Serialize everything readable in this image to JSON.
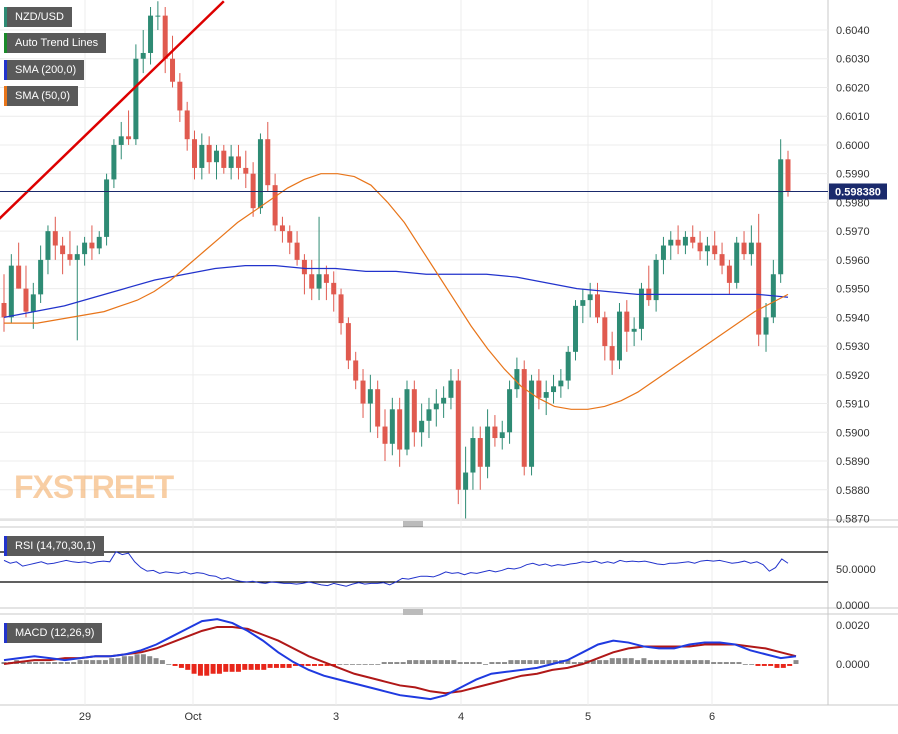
{
  "chart_data": {
    "type": "candlestick",
    "title": "NZD/USD",
    "colors": {
      "up": "#2e8b74",
      "down": "#e05a4f",
      "sma200": "#2233cc",
      "sma50": "#e8751a",
      "trend": "#dd0000",
      "rsi": "#2233cc",
      "macd": "#1f3ae0",
      "signal": "#b01818",
      "hist_pos": "#8a8a8a",
      "hist_neg": "#e8261a",
      "price_line": "#1a2a6c"
    },
    "price_axis": {
      "min": 0.587,
      "max": 0.604,
      "step": 0.001,
      "ticks": [
        "0.6040",
        "0.6030",
        "0.6020",
        "0.6010",
        "0.6000",
        "0.5990",
        "0.5980",
        "0.5970",
        "0.5960",
        "0.5950",
        "0.5940",
        "0.5930",
        "0.5920",
        "0.5910",
        "0.5900",
        "0.5890",
        "0.5880",
        "0.5870"
      ]
    },
    "last_price": "0.598380",
    "last_price_value": 0.59838,
    "x_axis_labels": [
      "29",
      "Oct",
      "3",
      "4",
      "5",
      "6"
    ],
    "legend": [
      "NZD/USD",
      "Auto Trend Lines",
      "SMA (200,0)",
      "SMA (50,0)"
    ],
    "candles": [
      [
        0.5945,
        0.5955,
        0.5935,
        0.594
      ],
      [
        0.594,
        0.5962,
        0.5938,
        0.5958
      ],
      [
        0.5958,
        0.5966,
        0.595,
        0.595
      ],
      [
        0.595,
        0.5958,
        0.594,
        0.5942
      ],
      [
        0.5942,
        0.5952,
        0.5936,
        0.5948
      ],
      [
        0.5948,
        0.5965,
        0.5945,
        0.596
      ],
      [
        0.596,
        0.5972,
        0.5955,
        0.597
      ],
      [
        0.597,
        0.5975,
        0.596,
        0.5965
      ],
      [
        0.5965,
        0.5968,
        0.5955,
        0.5962
      ],
      [
        0.5962,
        0.597,
        0.5958,
        0.596
      ],
      [
        0.596,
        0.5965,
        0.5932,
        0.5962
      ],
      [
        0.5962,
        0.5968,
        0.5958,
        0.5966
      ],
      [
        0.5966,
        0.5972,
        0.596,
        0.5964
      ],
      [
        0.5964,
        0.597,
        0.5962,
        0.5968
      ],
      [
        0.5968,
        0.599,
        0.5965,
        0.5988
      ],
      [
        0.5988,
        0.6002,
        0.5985,
        0.6
      ],
      [
        0.6,
        0.6008,
        0.5995,
        0.6003
      ],
      [
        0.6003,
        0.6012,
        0.6,
        0.6002
      ],
      [
        0.6002,
        0.6035,
        0.6,
        0.603
      ],
      [
        0.603,
        0.604,
        0.6025,
        0.6032
      ],
      [
        0.6032,
        0.6048,
        0.6028,
        0.6045
      ],
      [
        0.6045,
        0.605,
        0.604,
        0.6045
      ],
      [
        0.6045,
        0.6048,
        0.6025,
        0.603
      ],
      [
        0.603,
        0.6038,
        0.602,
        0.6022
      ],
      [
        0.6022,
        0.6025,
        0.6008,
        0.6012
      ],
      [
        0.6012,
        0.6015,
        0.5998,
        0.6002
      ],
      [
        0.6002,
        0.6005,
        0.5988,
        0.5992
      ],
      [
        0.5992,
        0.6004,
        0.5988,
        0.6
      ],
      [
        0.6,
        0.6003,
        0.599,
        0.5994
      ],
      [
        0.5994,
        0.6,
        0.5988,
        0.5998
      ],
      [
        0.5998,
        0.6,
        0.599,
        0.5992
      ],
      [
        0.5992,
        0.6,
        0.5988,
        0.5996
      ],
      [
        0.5996,
        0.6,
        0.5988,
        0.5992
      ],
      [
        0.5992,
        0.5998,
        0.5985,
        0.599
      ],
      [
        0.599,
        0.5994,
        0.5975,
        0.5978
      ],
      [
        0.5978,
        0.6004,
        0.5976,
        0.6002
      ],
      [
        0.6002,
        0.6008,
        0.5984,
        0.5986
      ],
      [
        0.5986,
        0.599,
        0.597,
        0.5972
      ],
      [
        0.5972,
        0.5975,
        0.5966,
        0.597
      ],
      [
        0.597,
        0.5972,
        0.5962,
        0.5966
      ],
      [
        0.5966,
        0.597,
        0.5958,
        0.596
      ],
      [
        0.596,
        0.5962,
        0.5948,
        0.5955
      ],
      [
        0.5955,
        0.596,
        0.5946,
        0.595
      ],
      [
        0.595,
        0.5975,
        0.5946,
        0.5955
      ],
      [
        0.5955,
        0.5958,
        0.5946,
        0.5952
      ],
      [
        0.5952,
        0.5956,
        0.5942,
        0.5948
      ],
      [
        0.5948,
        0.595,
        0.5934,
        0.5938
      ],
      [
        0.5938,
        0.594,
        0.5922,
        0.5925
      ],
      [
        0.5925,
        0.5928,
        0.5915,
        0.5918
      ],
      [
        0.5918,
        0.5922,
        0.5905,
        0.591
      ],
      [
        0.591,
        0.592,
        0.59,
        0.5915
      ],
      [
        0.5915,
        0.5918,
        0.5898,
        0.5902
      ],
      [
        0.5902,
        0.5908,
        0.589,
        0.5896
      ],
      [
        0.5896,
        0.5912,
        0.5892,
        0.5908
      ],
      [
        0.5908,
        0.5912,
        0.5888,
        0.5894
      ],
      [
        0.5894,
        0.5918,
        0.5892,
        0.5915
      ],
      [
        0.5915,
        0.5918,
        0.5895,
        0.59
      ],
      [
        0.59,
        0.591,
        0.5895,
        0.5904
      ],
      [
        0.5904,
        0.5912,
        0.5898,
        0.5908
      ],
      [
        0.5908,
        0.5915,
        0.5902,
        0.591
      ],
      [
        0.591,
        0.5916,
        0.5905,
        0.5912
      ],
      [
        0.5912,
        0.5922,
        0.5908,
        0.5918
      ],
      [
        0.5918,
        0.5922,
        0.5875,
        0.588
      ],
      [
        0.588,
        0.5895,
        0.587,
        0.5886
      ],
      [
        0.5886,
        0.5902,
        0.588,
        0.5898
      ],
      [
        0.5898,
        0.5902,
        0.588,
        0.5888
      ],
      [
        0.5888,
        0.5908,
        0.5884,
        0.5902
      ],
      [
        0.5902,
        0.5906,
        0.5895,
        0.5898
      ],
      [
        0.5898,
        0.5904,
        0.5894,
        0.59
      ],
      [
        0.59,
        0.5918,
        0.5896,
        0.5915
      ],
      [
        0.5915,
        0.5926,
        0.5912,
        0.5922
      ],
      [
        0.5922,
        0.5925,
        0.5885,
        0.5888
      ],
      [
        0.5888,
        0.592,
        0.5885,
        0.5918
      ],
      [
        0.5918,
        0.5922,
        0.5908,
        0.5912
      ],
      [
        0.5912,
        0.5918,
        0.5906,
        0.5914
      ],
      [
        0.5914,
        0.592,
        0.591,
        0.5916
      ],
      [
        0.5916,
        0.5922,
        0.5912,
        0.5918
      ],
      [
        0.5918,
        0.593,
        0.5915,
        0.5928
      ],
      [
        0.5928,
        0.5946,
        0.5925,
        0.5944
      ],
      [
        0.5944,
        0.595,
        0.5938,
        0.5946
      ],
      [
        0.5946,
        0.5952,
        0.594,
        0.5948
      ],
      [
        0.5948,
        0.5952,
        0.5938,
        0.594
      ],
      [
        0.594,
        0.5942,
        0.5925,
        0.593
      ],
      [
        0.593,
        0.5935,
        0.592,
        0.5925
      ],
      [
        0.5925,
        0.5945,
        0.5922,
        0.5942
      ],
      [
        0.5942,
        0.5946,
        0.5928,
        0.5935
      ],
      [
        0.5935,
        0.594,
        0.593,
        0.5936
      ],
      [
        0.5936,
        0.5952,
        0.5932,
        0.595
      ],
      [
        0.595,
        0.5958,
        0.5944,
        0.5946
      ],
      [
        0.5946,
        0.5962,
        0.5942,
        0.596
      ],
      [
        0.596,
        0.5968,
        0.5955,
        0.5965
      ],
      [
        0.5965,
        0.597,
        0.596,
        0.5967
      ],
      [
        0.5967,
        0.5972,
        0.5962,
        0.5965
      ],
      [
        0.5965,
        0.597,
        0.5962,
        0.5968
      ],
      [
        0.5968,
        0.5972,
        0.5964,
        0.5966
      ],
      [
        0.5966,
        0.597,
        0.596,
        0.5963
      ],
      [
        0.5963,
        0.5968,
        0.5958,
        0.5965
      ],
      [
        0.5965,
        0.597,
        0.596,
        0.5962
      ],
      [
        0.5962,
        0.5966,
        0.5955,
        0.5958
      ],
      [
        0.5958,
        0.596,
        0.5948,
        0.5952
      ],
      [
        0.5952,
        0.5968,
        0.595,
        0.5966
      ],
      [
        0.5966,
        0.597,
        0.596,
        0.5962
      ],
      [
        0.5962,
        0.5972,
        0.5958,
        0.5966
      ],
      [
        0.5966,
        0.5976,
        0.593,
        0.5934
      ],
      [
        0.5934,
        0.5945,
        0.5928,
        0.594
      ],
      [
        0.594,
        0.596,
        0.5938,
        0.5955
      ],
      [
        0.5955,
        0.6002,
        0.5952,
        0.5995
      ],
      [
        0.5995,
        0.5998,
        0.5982,
        0.5984
      ]
    ],
    "sma50": [
      0.5938,
      0.5938,
      0.5938,
      0.5939,
      0.594,
      0.5941,
      0.5942,
      0.5944,
      0.5946,
      0.5949,
      0.5953,
      0.5958,
      0.5963,
      0.5968,
      0.5973,
      0.5977,
      0.5981,
      0.5985,
      0.5988,
      0.599,
      0.599,
      0.5989,
      0.5986,
      0.598,
      0.5973,
      0.5964,
      0.5955,
      0.5946,
      0.5937,
      0.5929,
      0.5922,
      0.5916,
      0.5912,
      0.5909,
      0.5908,
      0.5908,
      0.5909,
      0.5911,
      0.5914,
      0.5918,
      0.5922,
      0.5926,
      0.593,
      0.5934,
      0.5938,
      0.5942,
      0.5945,
      0.5948
    ],
    "sma200": [
      0.594,
      0.5942,
      0.5944,
      0.5947,
      0.595,
      0.5953,
      0.5955,
      0.5957,
      0.5958,
      0.5958,
      0.5957,
      0.5957,
      0.5956,
      0.5956,
      0.5955,
      0.5955,
      0.5955,
      0.5954,
      0.5952,
      0.595,
      0.5949,
      0.5948,
      0.5948,
      0.5948,
      0.5948,
      0.5948,
      0.5947
    ],
    "trend_line": [
      [
        -4,
        0.5966
      ],
      [
        30,
        0.605
      ]
    ],
    "rsi": {
      "label": "RSI (14,70,30,1)",
      "levels": [
        70,
        30
      ],
      "ticks": [
        "50.0000",
        "0.0000"
      ],
      "values": [
        62,
        58,
        60,
        54,
        56,
        58,
        60,
        57,
        58,
        60,
        62,
        60,
        59,
        60,
        58,
        60,
        61,
        60,
        74,
        70,
        72,
        60,
        52,
        47,
        48,
        44,
        46,
        45,
        44,
        46,
        43,
        45,
        44,
        41,
        40,
        36,
        38,
        35,
        33,
        32,
        33,
        31,
        30,
        32,
        31,
        30,
        30,
        29,
        30,
        32,
        30,
        28,
        27,
        30,
        28,
        26,
        29,
        31,
        29,
        30,
        30,
        31,
        28,
        32,
        37,
        36,
        38,
        40,
        40,
        39,
        42,
        46,
        44,
        45,
        42,
        45,
        44,
        46,
        48,
        46,
        48,
        51,
        50,
        52,
        56,
        58,
        55,
        57,
        54,
        56,
        55,
        57,
        58,
        60,
        59,
        61,
        58,
        60,
        58,
        62,
        60,
        61,
        60,
        61,
        59,
        57,
        56,
        58,
        58,
        59,
        60,
        58,
        61,
        62,
        61,
        62,
        60,
        58,
        59,
        61,
        58,
        60,
        56,
        47,
        52,
        64,
        58
      ]
    },
    "macd": {
      "label": "MACD (12,26,9)",
      "ticks": [
        "0.0020",
        "0.0000"
      ],
      "macd": [
        0.0002,
        0.0003,
        0.0004,
        0.0003,
        0.0002,
        0.0003,
        0.0004,
        0.0004,
        0.0005,
        0.0007,
        0.001,
        0.0014,
        0.0018,
        0.0022,
        0.0023,
        0.0021,
        0.0017,
        0.0012,
        0.0006,
        0.0001,
        -0.0003,
        -0.0006,
        -0.0008,
        -0.001,
        -0.0012,
        -0.0014,
        -0.0016,
        -0.0017,
        -0.0018,
        -0.0016,
        -0.0012,
        -0.0008,
        -0.0005,
        -0.0004,
        -0.0003,
        -0.0002,
        0.0,
        0.0002,
        0.0006,
        0.001,
        0.0012,
        0.0011,
        0.0009,
        0.0008,
        0.0008,
        0.001,
        0.0011,
        0.0011,
        0.001,
        0.0007,
        0.0005,
        0.0003,
        0.0004
      ],
      "signal": [
        0.0,
        0.0001,
        0.0002,
        0.0002,
        0.0003,
        0.0003,
        0.0004,
        0.0004,
        0.0005,
        0.0006,
        0.0008,
        0.0011,
        0.0014,
        0.0017,
        0.0019,
        0.0019,
        0.0018,
        0.0015,
        0.0012,
        0.0008,
        0.0004,
        0.0001,
        -0.0002,
        -0.0005,
        -0.0007,
        -0.0009,
        -0.0011,
        -0.0012,
        -0.0014,
        -0.0015,
        -0.0014,
        -0.0012,
        -0.001,
        -0.0008,
        -0.0006,
        -0.0005,
        -0.0003,
        -0.0002,
        0.0,
        0.0003,
        0.0006,
        0.0008,
        0.0009,
        0.0009,
        0.0009,
        0.0009,
        0.001,
        0.001,
        0.001,
        0.0009,
        0.0008,
        0.0006,
        0.0004
      ],
      "hist": [
        0.0001,
        0.0001,
        0.0002,
        0.0001,
        0.0001,
        0.0001,
        0.0001,
        0.0001,
        0.0001,
        0.0001,
        0.0001,
        0.0001,
        0.0002,
        0.0002,
        0.0002,
        0.0002,
        0.0002,
        0.0003,
        0.0003,
        0.0004,
        0.0004,
        0.0005,
        0.0005,
        0.0004,
        0.0003,
        0.0002,
        0.0,
        -0.0001,
        -0.0002,
        -0.0003,
        -0.0005,
        -0.0006,
        -0.0006,
        -0.0005,
        -0.0005,
        -0.0004,
        -0.0004,
        -0.0004,
        -0.0003,
        -0.0003,
        -0.0003,
        -0.0003,
        -0.0002,
        -0.0002,
        -0.0002,
        -0.0002,
        -0.0001,
        -0.0001,
        -0.0001,
        -0.0001,
        -0.0001,
        -0.0001,
        -0.0001,
        0.0,
        0.0,
        0.0,
        0.0,
        0.0,
        0.0,
        0.0,
        0.0001,
        0.0001,
        0.0001,
        0.0001,
        0.0002,
        0.0002,
        0.0002,
        0.0002,
        0.0002,
        0.0002,
        0.0002,
        0.0002,
        0.0001,
        0.0001,
        0.0001,
        0.0001,
        0.0,
        0.0001,
        0.0001,
        0.0001,
        0.0002,
        0.0002,
        0.0002,
        0.0002,
        0.0002,
        0.0002,
        0.0002,
        0.0002,
        0.0002,
        0.0002,
        0.0001,
        0.0001,
        0.0002,
        0.0002,
        0.0002,
        0.0002,
        0.0003,
        0.0003,
        0.0003,
        0.0003,
        0.0002,
        0.0003,
        0.0002,
        0.0002,
        0.0002,
        0.0002,
        0.0002,
        0.0002,
        0.0002,
        0.0002,
        0.0002,
        0.0002,
        0.0001,
        0.0001,
        0.0001,
        0.0001,
        0.0001,
        0.0,
        0.0,
        -0.0001,
        -0.0001,
        -0.0001,
        -0.0002,
        -0.0002,
        -0.0001,
        0.0002
      ]
    }
  },
  "watermark": "FXSTREET"
}
